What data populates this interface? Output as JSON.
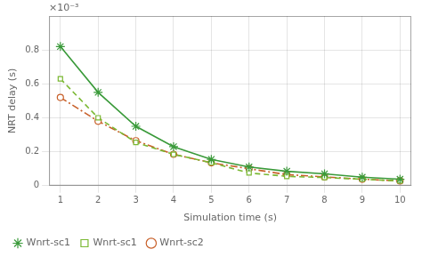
{
  "chart_data": {
    "type": "line",
    "x_label": "Simulation time (s)",
    "y_label": "NRT delay (s)",
    "annotations": [
      "×10⁻³"
    ],
    "x": [
      1,
      2,
      3,
      4,
      5,
      6,
      7,
      8,
      9,
      10
    ],
    "series": [
      {
        "name": "Wnrt-sc1",
        "color": "#3a9a3a",
        "marker": "star",
        "line_style": "solid",
        "values": [
          0.00082,
          0.00055,
          0.00035,
          0.00023,
          0.000155,
          0.00011,
          8.5e-05,
          7e-05,
          5e-05,
          3.8e-05
        ]
      },
      {
        "name": "Wnrt-sc1",
        "color": "#7ab832",
        "marker": "square",
        "line_style": "dashed",
        "values": [
          0.00063,
          0.0004,
          0.000255,
          0.000185,
          0.000135,
          7.5e-05,
          5.5e-05,
          4.8e-05,
          3.8e-05,
          2.8e-05
        ]
      },
      {
        "name": "Wnrt-sc2",
        "color": "#c8602a",
        "marker": "circle",
        "line_style": "dashdot",
        "values": [
          0.00052,
          0.00038,
          0.000265,
          0.000185,
          0.000135,
          0.0001,
          6.5e-05,
          5.2e-05,
          3.8e-05,
          2.8e-05
        ]
      }
    ],
    "xlim": [
      0.7,
      10.3
    ],
    "xticks": [
      1,
      2,
      3,
      4,
      5,
      6,
      7,
      8,
      9,
      10
    ],
    "ylim": [
      0,
      0.001
    ],
    "yticks": [
      {
        "value": 0,
        "label": "0"
      },
      {
        "value": 0.0002,
        "label": "0.2"
      },
      {
        "value": 0.0004,
        "label": "0.4"
      },
      {
        "value": 0.0006,
        "label": "0.6"
      },
      {
        "value": 0.0008,
        "label": "0.8"
      }
    ],
    "grid": true,
    "legend": "bottom"
  }
}
